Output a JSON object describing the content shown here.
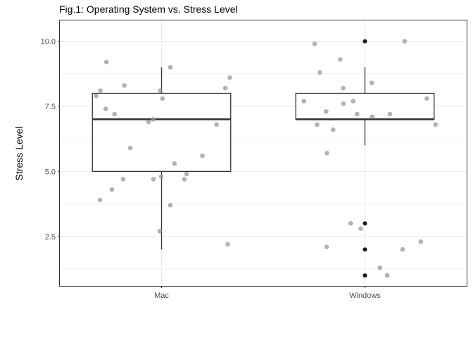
{
  "chart_data": {
    "type": "boxplot",
    "title": "Fig.1: Operating System vs. Stress Level",
    "xlabel": "",
    "ylabel": "Stress Level",
    "categories": [
      "Mac",
      "Windows"
    ],
    "ylim": [
      0.6,
      10.8
    ],
    "yticks": [
      "2.5",
      "5.0",
      "7.5",
      "10.0"
    ],
    "yticks_values": [
      2.5,
      5.0,
      7.5,
      10.0
    ],
    "grid": true,
    "legend": "none",
    "colors": {
      "box_stroke": "#333333",
      "panel_border": "#333333",
      "grid": "#ebebeb",
      "point_jitter": "#999999",
      "point_outlier": "#1a1a1a"
    },
    "boxes": [
      {
        "category": "Mac",
        "whisker_low": 2.0,
        "q1": 5.0,
        "median": 7.0,
        "q3": 8.0,
        "whisker_high": 9.0,
        "outliers": []
      },
      {
        "category": "Windows",
        "whisker_low": 6.0,
        "q1": 7.0,
        "median": 7.0,
        "q3": 8.0,
        "whisker_high": 9.0,
        "outliers": [
          10.0,
          3.0,
          2.0,
          1.0
        ]
      }
    ],
    "points": [
      {
        "category": "Mac",
        "values": [
          8.1,
          9.0,
          7.4,
          8.3,
          7.0,
          7.8,
          8.1,
          6.8,
          5.3,
          6.9,
          5.9,
          5.6,
          4.7,
          3.9,
          4.8,
          4.7,
          4.9,
          4.3,
          3.7,
          2.7,
          7.2,
          7.9,
          8.2,
          8.6,
          9.2,
          4.7,
          2.2
        ]
      },
      {
        "category": "Windows",
        "values": [
          8.8,
          7.7,
          7.1,
          7.2,
          6.6,
          6.8,
          6.8,
          7.2,
          7.3,
          8.4,
          9.3,
          9.9,
          10.0,
          7.6,
          8.2,
          7.7,
          7.8,
          5.7,
          2.3,
          2.8,
          2.1,
          1.3,
          3.0,
          2.0,
          1.0
        ]
      }
    ]
  }
}
